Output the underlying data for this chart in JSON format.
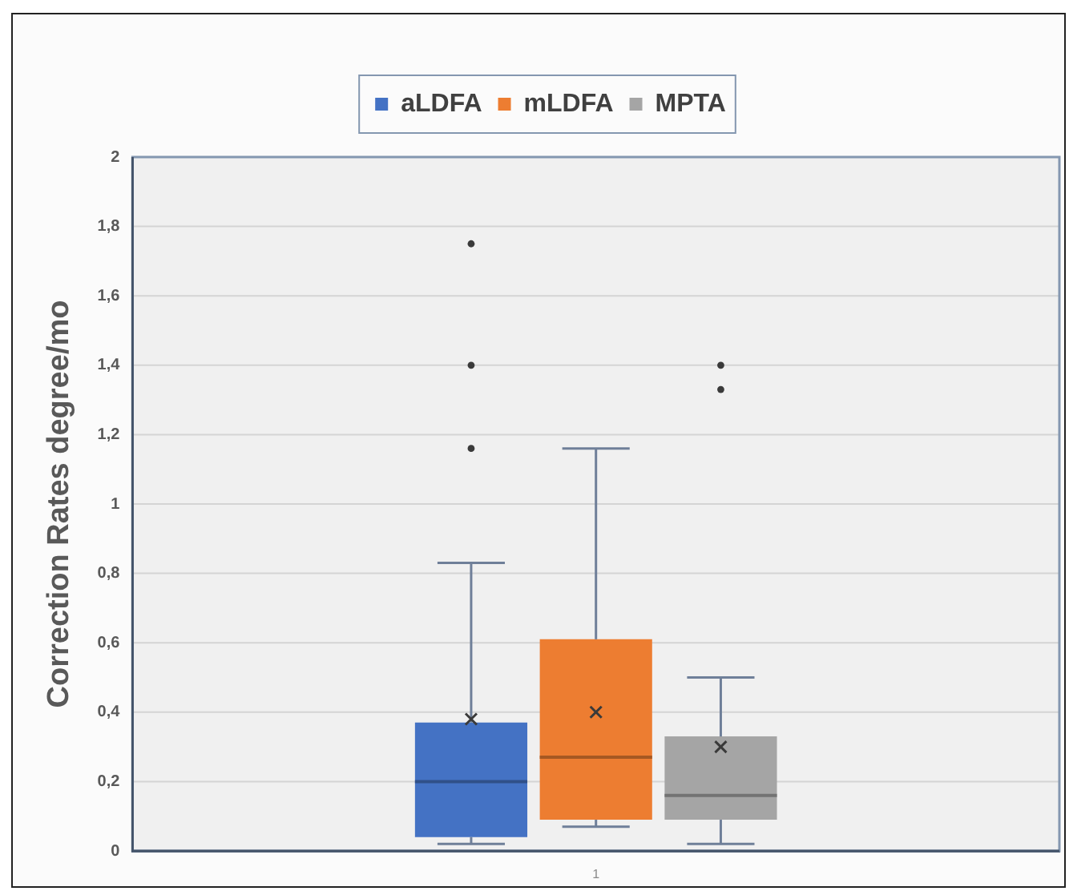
{
  "chart_data": {
    "type": "box",
    "categories": [
      "1"
    ],
    "series": [
      {
        "name": "aLDFA",
        "color": "#4472c4",
        "boxes": [
          {
            "low": 0.02,
            "q1": 0.04,
            "median": 0.2,
            "q3": 0.37,
            "high": 0.83,
            "mean": 0.38,
            "outliers": [
              1.16,
              1.4,
              1.75
            ]
          }
        ]
      },
      {
        "name": "mLDFA",
        "color": "#ed7d31",
        "boxes": [
          {
            "low": 0.07,
            "q1": 0.09,
            "median": 0.27,
            "q3": 0.61,
            "high": 1.16,
            "mean": 0.4
          }
        ]
      },
      {
        "name": "MPTA",
        "color": "#a5a5a5",
        "boxes": [
          {
            "low": 0.02,
            "q1": 0.09,
            "median": 0.16,
            "q3": 0.33,
            "high": 0.5,
            "mean": 0.3,
            "outliers": [
              1.33,
              1.4
            ]
          }
        ]
      }
    ],
    "ylabel": "Correction Rates degree/mo",
    "ylim": [
      0,
      2
    ],
    "yticks": [
      0,
      {
        "value": 0.2,
        "label": "0,2"
      },
      {
        "value": 0.4,
        "label": "0,4"
      },
      {
        "value": 0.6,
        "label": "0,6"
      },
      {
        "value": 0.8,
        "label": "0,8"
      },
      1,
      {
        "value": 1.2,
        "label": "1,2"
      },
      {
        "value": 1.4,
        "label": "1,4"
      },
      {
        "value": 1.6,
        "label": "1,6"
      },
      {
        "value": 1.8,
        "label": "1,8"
      },
      2
    ],
    "grid": "y",
    "legend": "top"
  }
}
